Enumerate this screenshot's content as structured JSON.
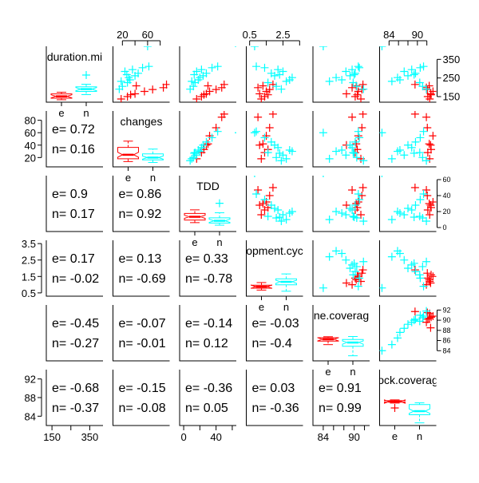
{
  "chart_data": {
    "type": "scatter-matrix",
    "title": "",
    "colors": {
      "e": "#ff0000",
      "n": "#00ffff",
      "frame": "#000000"
    },
    "variables": [
      {
        "name": "duration.min",
        "label": "duration.mi",
        "range": [
          120,
          420
        ],
        "ticks": [
          150,
          250,
          350
        ],
        "tick_labels": [
          "150",
          "250",
          "350"
        ]
      },
      {
        "name": "changes",
        "label": "changes",
        "range": [
          5,
          95
        ],
        "ticks": [
          20,
          40,
          60,
          80
        ],
        "tick_labels": [
          "20",
          "40",
          "60",
          "80"
        ]
      },
      {
        "name": "TDD",
        "label": "TDD",
        "range": [
          -5,
          65
        ],
        "ticks": [
          0,
          20,
          40,
          60
        ],
        "tick_labels": [
          "0",
          "20",
          "40",
          "60"
        ]
      },
      {
        "name": "development.cycle",
        "label": "opment.cyc",
        "range": [
          0.3,
          3.7
        ],
        "ticks": [
          0.5,
          1.5,
          2.5,
          3.5
        ],
        "tick_labels": [
          "0.5",
          "1.5",
          "2.5",
          "3.5"
        ]
      },
      {
        "name": "line.coverage",
        "label": "ne.coverag",
        "range": [
          82,
          93
        ],
        "ticks": [
          84,
          86,
          88,
          90,
          92
        ],
        "tick_labels": [
          "84",
          "86",
          "88",
          "90",
          "92"
        ]
      },
      {
        "name": "block.coverage",
        "label": "ock.coverag",
        "range": [
          82,
          94
        ],
        "ticks": [
          84,
          88,
          92
        ],
        "tick_labels": [
          "84",
          "88",
          "92"
        ]
      }
    ],
    "axes": {
      "top": [
        {
          "col": 1,
          "ticks": [
            20,
            40,
            60,
            80
          ],
          "labels": [
            "20",
            "",
            "60",
            ""
          ]
        },
        {
          "col": 3,
          "ticks": [
            0.5,
            1.5,
            2.5,
            3.5
          ],
          "labels": [
            "0.5",
            "",
            "2.5",
            ""
          ]
        },
        {
          "col": 5,
          "ticks": [
            84,
            86,
            88,
            90,
            92
          ],
          "labels": [
            "84",
            "",
            "",
            "90",
            ""
          ]
        }
      ],
      "bottom": [
        {
          "col": 0,
          "ticks": [
            150,
            250,
            350
          ],
          "labels": [
            "150",
            "",
            "350"
          ]
        },
        {
          "col": 2,
          "ticks": [
            0,
            20,
            40,
            60
          ],
          "labels": [
            "0",
            "",
            "40",
            ""
          ]
        },
        {
          "col": 4,
          "ticks": [
            84,
            86,
            88,
            90,
            92
          ],
          "labels": [
            "84",
            "",
            "",
            "90",
            ""
          ]
        }
      ],
      "left": [
        {
          "row": 1,
          "ticks": [
            20,
            40,
            60,
            80
          ],
          "labels": [
            "20",
            "40",
            "60",
            "80"
          ]
        },
        {
          "row": 3,
          "ticks": [
            0.5,
            1.5,
            2.5,
            3.5
          ],
          "labels": [
            "0.5",
            "1.5",
            "2.5",
            "3.5"
          ]
        },
        {
          "row": 5,
          "ticks": [
            84,
            88,
            92
          ],
          "labels": [
            "84",
            "88",
            "92"
          ]
        }
      ],
      "right": [
        {
          "row": 0,
          "ticks": [
            150,
            250,
            350
          ],
          "labels": [
            "150",
            "250",
            "350"
          ]
        },
        {
          "row": 2,
          "ticks": [
            0,
            20,
            40,
            60
          ],
          "labels": [
            "0",
            "20",
            "40",
            "60"
          ]
        },
        {
          "row": 4,
          "ticks": [
            84,
            86,
            88,
            90,
            92
          ],
          "labels": [
            "84",
            "86",
            "88",
            "90",
            "92"
          ]
        }
      ]
    },
    "boxplot_groups": [
      "e",
      "n"
    ],
    "boxplots": [
      {
        "var": 0,
        "e": {
          "min": 130,
          "q1": 148,
          "median": 170,
          "q3": 198,
          "max": 218
        },
        "n": {
          "min": 190,
          "q1": 228,
          "median": 255,
          "q3": 282,
          "max": 312
        },
        "n_outliers": [
          420
        ]
      },
      {
        "var": 1,
        "e": {
          "min": 18,
          "q1": 28,
          "median": 42,
          "q3": 68,
          "max": 90
        },
        "n": {
          "min": 15,
          "q1": 24,
          "median": 32,
          "q3": 45,
          "max": 62
        }
      },
      {
        "var": 2,
        "e": {
          "min": 15,
          "q1": 22,
          "median": 31,
          "q3": 40,
          "max": 50
        },
        "n": {
          "min": 8,
          "q1": 14,
          "median": 20,
          "q3": 28,
          "max": 42
        },
        "n_outliers": [
          68
        ]
      },
      {
        "var": 3,
        "e": {
          "min": 0.9,
          "q1": 1.15,
          "median": 1.35,
          "q3": 1.55,
          "max": 1.9
        },
        "n": {
          "min": 0.75,
          "q1": 1.6,
          "median": 2.0,
          "q3": 2.4,
          "max": 3.05
        }
      },
      {
        "var": 4,
        "e": {
          "min": 88.3,
          "q1": 89.8,
          "median": 90.6,
          "q3": 91.3,
          "max": 91.7
        },
        "n": {
          "min": 83.5,
          "q1": 87.6,
          "median": 89.2,
          "q3": 90.5,
          "max": 91.8
        }
      },
      {
        "var": 5,
        "e": {
          "min": 91.8,
          "q1": 92.2,
          "median": 92.5,
          "q3": 92.9,
          "max": 93.3
        },
        "n": {
          "min": 82.5,
          "q1": 86.3,
          "median": 88.0,
          "q3": 91.1,
          "max": 91.9
        },
        "e_outliers": [
          89.5
        ]
      }
    ],
    "correlations": [
      {
        "row": 1,
        "col": 0,
        "e": "0.72",
        "n": "0.16"
      },
      {
        "row": 2,
        "col": 0,
        "e": "0.9",
        "n": "0.17"
      },
      {
        "row": 2,
        "col": 1,
        "e": "0.86",
        "n": "0.92"
      },
      {
        "row": 3,
        "col": 0,
        "e": "0.17",
        "n": "-0.02"
      },
      {
        "row": 3,
        "col": 1,
        "e": "0.13",
        "n": "-0.69"
      },
      {
        "row": 3,
        "col": 2,
        "e": "0.33",
        "n": "-0.78"
      },
      {
        "row": 4,
        "col": 0,
        "e": "-0.45",
        "n": "-0.27"
      },
      {
        "row": 4,
        "col": 1,
        "e": "-0.07",
        "n": "-0.01"
      },
      {
        "row": 4,
        "col": 2,
        "e": "-0.14",
        "n": "0.12"
      },
      {
        "row": 4,
        "col": 3,
        "e": "-0.03",
        "n": "-0.4"
      },
      {
        "row": 5,
        "col": 0,
        "e": "-0.68",
        "n": "-0.37"
      },
      {
        "row": 5,
        "col": 1,
        "e": "-0.15",
        "n": "-0.08"
      },
      {
        "row": 5,
        "col": 2,
        "e": "-0.36",
        "n": "0.05"
      },
      {
        "row": 5,
        "col": 3,
        "e": "0.03",
        "n": "-0.36"
      },
      {
        "row": 5,
        "col": 4,
        "e": "0.91",
        "n": "0.99"
      }
    ],
    "observations": {
      "e": [
        [
          137,
          18,
          16,
          1.2,
          91.3,
          92.6
        ],
        [
          150,
          28,
          22,
          1.4,
          90.2,
          92.2
        ],
        [
          165,
          40,
          28,
          1.1,
          88.5,
          92.8
        ],
        [
          178,
          55,
          32,
          1.5,
          90.8,
          93.3
        ],
        [
          188,
          68,
          40,
          1.7,
          91.5,
          92.1
        ],
        [
          198,
          85,
          47,
          1.0,
          89.6,
          91.9
        ],
        [
          208,
          42,
          30,
          1.3,
          90.4,
          92.5
        ],
        [
          215,
          90,
          50,
          1.9,
          91.7,
          89.5
        ],
        [
          160,
          33,
          25,
          1.6,
          90.6,
          92.9
        ]
      ],
      "n": [
        [
          420,
          60,
          68,
          0.8,
          84.0,
          82.5
        ],
        [
          190,
          15,
          8,
          2.4,
          91.8,
          91.9
        ],
        [
          205,
          20,
          12,
          2.1,
          90.5,
          91.1
        ],
        [
          225,
          28,
          14,
          1.6,
          89.8,
          90.5
        ],
        [
          240,
          32,
          18,
          2.9,
          87.6,
          86.3
        ],
        [
          252,
          30,
          20,
          3.05,
          86.5,
          85.8
        ],
        [
          262,
          40,
          24,
          2.0,
          89.2,
          88.0
        ],
        [
          275,
          45,
          28,
          1.8,
          90.2,
          89.6
        ],
        [
          285,
          24,
          16,
          2.5,
          88.4,
          87.2
        ],
        [
          295,
          36,
          22,
          2.2,
          89.6,
          88.8
        ],
        [
          305,
          52,
          35,
          1.4,
          91.0,
          90.6
        ],
        [
          312,
          62,
          42,
          0.9,
          90.8,
          91.3
        ],
        [
          232,
          18,
          10,
          2.7,
          85.2,
          84.6
        ],
        [
          268,
          27,
          13,
          2.3,
          90.0,
          89.3
        ]
      ]
    }
  }
}
